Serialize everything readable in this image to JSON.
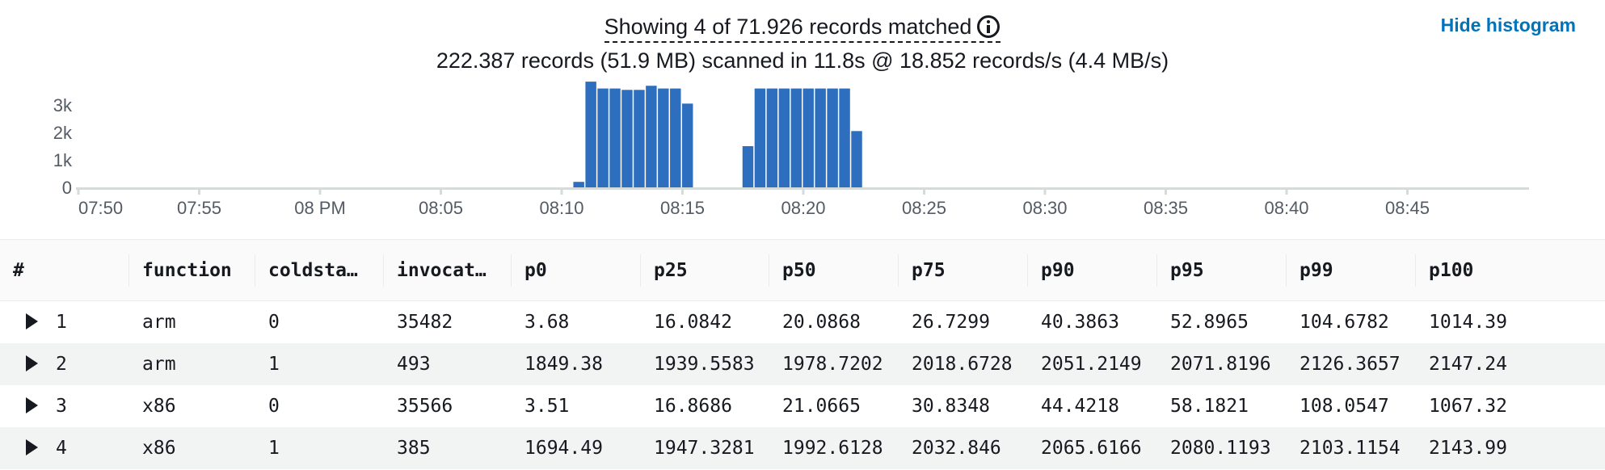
{
  "summary": {
    "matched_text": "Showing 4 of 71.926 records matched",
    "scanned_text": "222.387 records (51.9 MB) scanned in 11.8s @ 18.852 records/s (4.4 MB/s)",
    "hide_histogram_label": "Hide histogram",
    "info_icon": "info-icon"
  },
  "histogram": {
    "y_ticks": [
      {
        "label": "3k",
        "value": 3000
      },
      {
        "label": "2k",
        "value": 2000
      },
      {
        "label": "1k",
        "value": 1000
      },
      {
        "label": "0",
        "value": 0
      }
    ],
    "x_tick_labels": [
      "07:50",
      "07:55",
      "08 PM",
      "08:05",
      "08:10",
      "08:15",
      "08:20",
      "08:25",
      "08:30",
      "08:35",
      "08:40",
      "08:45"
    ],
    "bar_color": "#2d6fbe",
    "bars": [
      {
        "minute": 20.5,
        "value": 200
      },
      {
        "minute": 21.0,
        "value": 3850
      },
      {
        "minute": 21.5,
        "value": 3600
      },
      {
        "minute": 22.0,
        "value": 3600
      },
      {
        "minute": 22.5,
        "value": 3550
      },
      {
        "minute": 23.0,
        "value": 3550
      },
      {
        "minute": 23.5,
        "value": 3700
      },
      {
        "minute": 24.0,
        "value": 3600
      },
      {
        "minute": 24.5,
        "value": 3600
      },
      {
        "minute": 25.0,
        "value": 3050
      },
      {
        "minute": 27.5,
        "value": 1500
      },
      {
        "minute": 28.0,
        "value": 3600
      },
      {
        "minute": 28.5,
        "value": 3600
      },
      {
        "minute": 29.0,
        "value": 3600
      },
      {
        "minute": 29.5,
        "value": 3600
      },
      {
        "minute": 30.0,
        "value": 3600
      },
      {
        "minute": 30.5,
        "value": 3600
      },
      {
        "minute": 31.0,
        "value": 3600
      },
      {
        "minute": 31.5,
        "value": 3600
      },
      {
        "minute": 32.0,
        "value": 2050
      }
    ]
  },
  "table": {
    "columns": [
      "#",
      "function",
      "coldsta…",
      "invocat…",
      "p0",
      "p25",
      "p50",
      "p75",
      "p90",
      "p95",
      "p99",
      "p100"
    ],
    "rows": [
      {
        "index": "1",
        "cells": [
          "arm",
          "0",
          "35482",
          "3.68",
          "16.0842",
          "20.0868",
          "26.7299",
          "40.3863",
          "52.8965",
          "104.6782",
          "1014.39"
        ]
      },
      {
        "index": "2",
        "cells": [
          "arm",
          "1",
          "493",
          "1849.38",
          "1939.5583",
          "1978.7202",
          "2018.6728",
          "2051.2149",
          "2071.8196",
          "2126.3657",
          "2147.24"
        ]
      },
      {
        "index": "3",
        "cells": [
          "x86",
          "0",
          "35566",
          "3.51",
          "16.8686",
          "21.0665",
          "30.8348",
          "44.4218",
          "58.1821",
          "108.0547",
          "1067.32"
        ]
      },
      {
        "index": "4",
        "cells": [
          "x86",
          "1",
          "385",
          "1694.49",
          "1947.3281",
          "1992.6128",
          "2032.846",
          "2065.6166",
          "2080.1193",
          "2103.1154",
          "2143.99"
        ]
      }
    ]
  }
}
